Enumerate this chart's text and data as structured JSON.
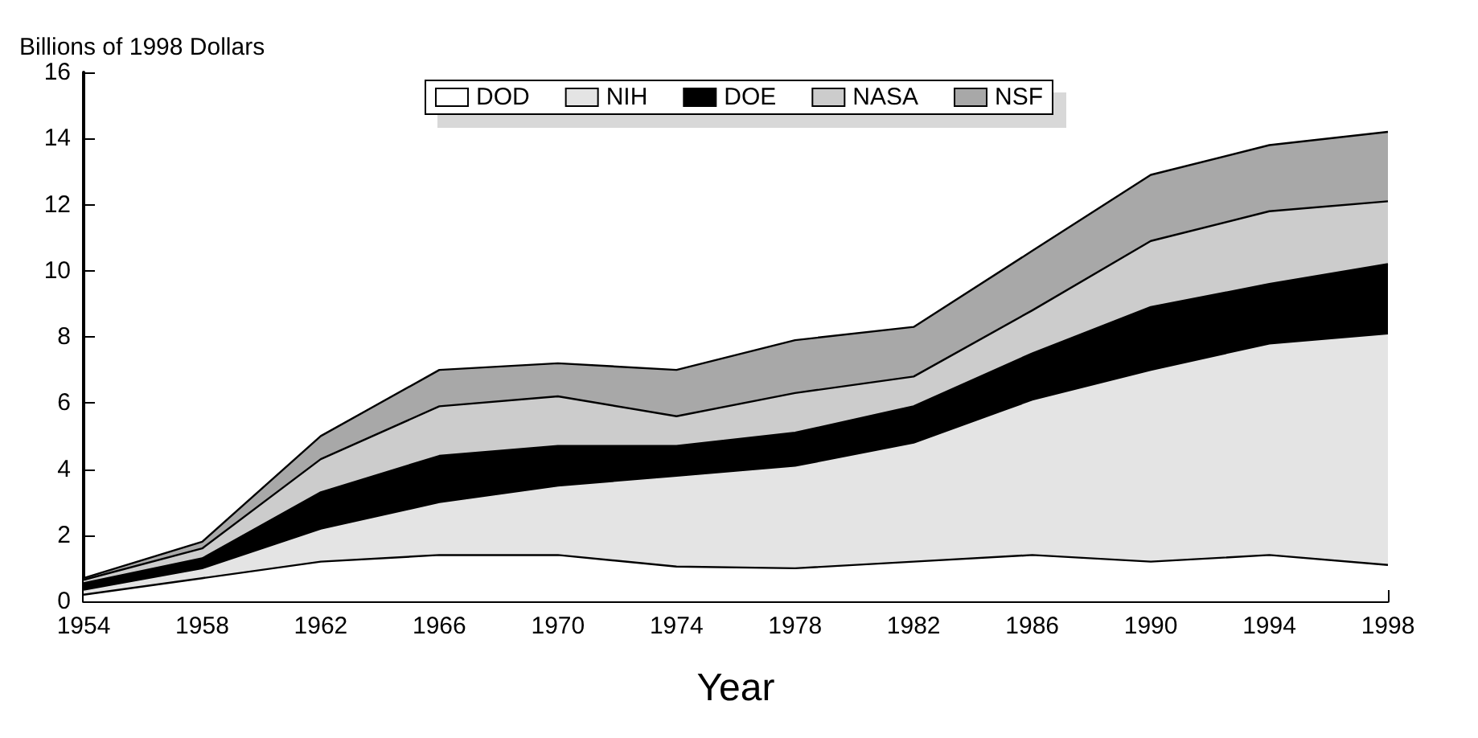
{
  "chart_data": {
    "type": "area",
    "stacked": true,
    "ylabel": "Billions of 1998 Dollars",
    "xlabel": "Year",
    "x": [
      1954,
      1958,
      1962,
      1966,
      1970,
      1974,
      1978,
      1982,
      1986,
      1990,
      1994,
      1998
    ],
    "xlim": [
      1954,
      1998
    ],
    "xticks": [
      1954,
      1958,
      1962,
      1966,
      1970,
      1974,
      1978,
      1982,
      1986,
      1990,
      1994,
      1998
    ],
    "ylim": [
      0,
      16
    ],
    "yticks": [
      0,
      2,
      4,
      6,
      8,
      10,
      12,
      14,
      16
    ],
    "series": [
      {
        "name": "DOD",
        "color": "#ffffff",
        "values": [
          0.2,
          0.7,
          1.2,
          1.4,
          1.4,
          1.05,
          1.0,
          1.2,
          1.4,
          1.2,
          1.4,
          1.1
        ]
      },
      {
        "name": "NIH",
        "color": "#e4e4e4",
        "values": [
          0.15,
          0.3,
          1.0,
          1.6,
          2.1,
          2.75,
          3.1,
          3.6,
          4.7,
          5.8,
          6.4,
          7.0
        ]
      },
      {
        "name": "DOE",
        "color": "#000000",
        "values": [
          0.2,
          0.3,
          1.1,
          1.4,
          1.2,
          0.9,
          1.0,
          1.1,
          1.4,
          1.9,
          1.8,
          2.1
        ]
      },
      {
        "name": "NASA",
        "color": "#cccccc",
        "values": [
          0.1,
          0.3,
          1.0,
          1.5,
          1.5,
          0.9,
          1.2,
          0.9,
          1.3,
          2.0,
          2.2,
          1.9
        ]
      },
      {
        "name": "NSF",
        "color": "#a8a8a8",
        "values": [
          0.05,
          0.2,
          0.7,
          1.1,
          1.0,
          1.4,
          1.6,
          1.5,
          1.8,
          2.0,
          2.0,
          2.1
        ]
      }
    ],
    "legend": "top",
    "grid": false,
    "marker": "none"
  }
}
